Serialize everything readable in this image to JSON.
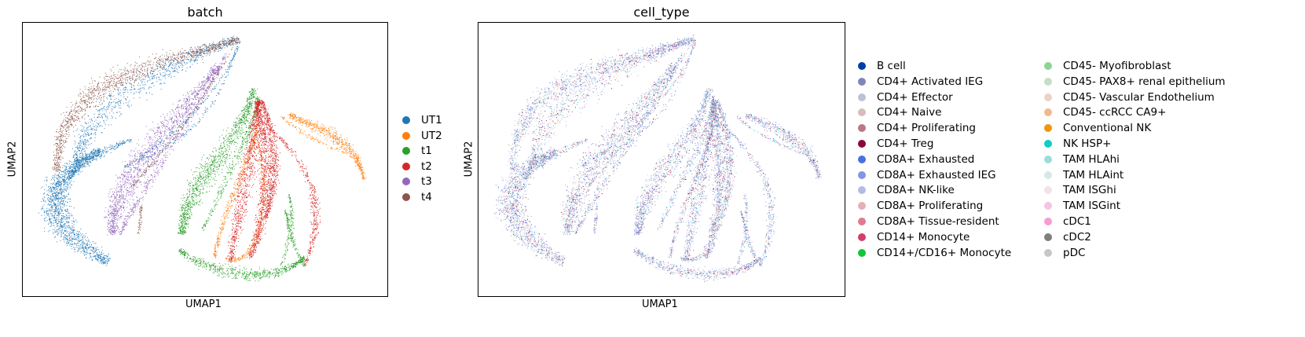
{
  "chart_data": [
    {
      "type": "scatter",
      "title": "batch",
      "xlabel": "UMAP1",
      "ylabel": "UMAP2",
      "xticks": [],
      "yticks": [],
      "legend_position": "right",
      "series": [
        {
          "name": "UT1",
          "color": "#1f77b4"
        },
        {
          "name": "UT2",
          "color": "#ff7f0e"
        },
        {
          "name": "t1",
          "color": "#2ca02c"
        },
        {
          "name": "t2",
          "color": "#d62728"
        },
        {
          "name": "t3",
          "color": "#9467bd"
        },
        {
          "name": "t4",
          "color": "#8c564b"
        }
      ]
    },
    {
      "type": "scatter",
      "title": "cell_type",
      "xlabel": "UMAP1",
      "ylabel": "UMAP2",
      "xticks": [],
      "yticks": [],
      "legend_position": "right",
      "series": [
        {
          "name": "B cell",
          "color": "#023fa5"
        },
        {
          "name": "CD4+ Activated IEG",
          "color": "#7d87b9"
        },
        {
          "name": "CD4+ Effector",
          "color": "#bec1d4"
        },
        {
          "name": "CD4+ Naive",
          "color": "#d6bcc0"
        },
        {
          "name": "CD4+ Proliferating",
          "color": "#bb7784"
        },
        {
          "name": "CD4+ Treg",
          "color": "#8e063b"
        },
        {
          "name": "CD8A+ Exhausted",
          "color": "#4a6fe3"
        },
        {
          "name": "CD8A+ Exhausted IEG",
          "color": "#8595e1"
        },
        {
          "name": "CD8A+ NK-like",
          "color": "#b5bbe3"
        },
        {
          "name": "CD8A+ Proliferating",
          "color": "#e6afb9"
        },
        {
          "name": "CD8A+ Tissue-resident",
          "color": "#e07b91"
        },
        {
          "name": "CD14+ Monocyte",
          "color": "#d33f6a"
        },
        {
          "name": "CD14+/CD16+ Monocyte",
          "color": "#11c638"
        },
        {
          "name": "CD45- Myofibroblast",
          "color": "#8dd593"
        },
        {
          "name": "CD45- PAX8+ renal epithelium",
          "color": "#c6dec7"
        },
        {
          "name": "CD45- Vascular Endothelium",
          "color": "#ead3c6"
        },
        {
          "name": "CD45- ccRCC CA9+",
          "color": "#f0b98d"
        },
        {
          "name": "Conventional NK",
          "color": "#ef9708"
        },
        {
          "name": "NK HSP+",
          "color": "#0fcfc0"
        },
        {
          "name": "TAM HLAhi",
          "color": "#9cded6"
        },
        {
          "name": "TAM HLAint",
          "color": "#d5eae7"
        },
        {
          "name": "TAM ISGhi",
          "color": "#f3e1eb"
        },
        {
          "name": "TAM ISGint",
          "color": "#f6c4e1"
        },
        {
          "name": "cDC1",
          "color": "#f79cd4"
        },
        {
          "name": "cDC2",
          "color": "#7f7f7f"
        },
        {
          "name": "pDC",
          "color": "#c7c7c7"
        }
      ]
    }
  ]
}
